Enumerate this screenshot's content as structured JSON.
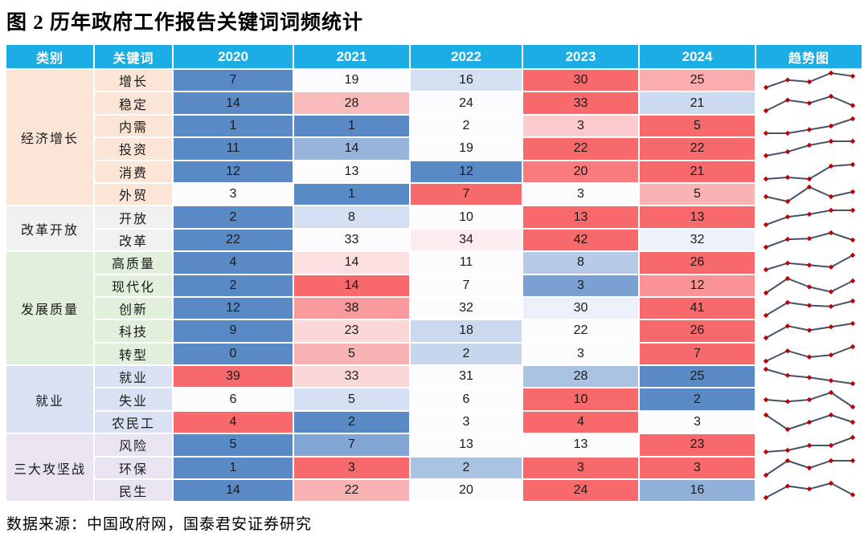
{
  "title": "图 2 历年政府工作报告关键词词频统计",
  "source": "数据来源：中国政府网，国泰君安证券研究",
  "table": {
    "headers": [
      "类别",
      "关键词",
      "2020",
      "2021",
      "2022",
      "2023",
      "2024",
      "趋势图"
    ],
    "category_colors": {
      "经济增长": "#FBE5D6",
      "改革开放": "#F0F0F0",
      "发展质量": "#E2EFDA",
      "就业": "#D9E1F2",
      "三大攻坚战": "#EAE4F2"
    }
  },
  "colors": {
    "header_bg": "#1CADE4",
    "header_text": "#FFFFFF",
    "heat_min": "#5A8AC6",
    "heat_mid": "#FCFCFF",
    "heat_max": "#F8696B",
    "spark_line": "#44546A",
    "spark_marker": "#C00000"
  },
  "chart_data": {
    "type": "table",
    "title": "图 2 历年政府工作报告关键词词频统计",
    "columns": [
      "类别",
      "关键词",
      "2020",
      "2021",
      "2022",
      "2023",
      "2024",
      "趋势图"
    ],
    "years": [
      "2020",
      "2021",
      "2022",
      "2023",
      "2024"
    ],
    "groups": [
      {
        "category": "经济增长",
        "rows": [
          {
            "keyword": "增长",
            "values": [
              7,
              19,
              16,
              30,
              25
            ]
          },
          {
            "keyword": "稳定",
            "values": [
              14,
              28,
              24,
              33,
              21
            ]
          },
          {
            "keyword": "内需",
            "values": [
              1,
              1,
              2,
              3,
              5
            ]
          },
          {
            "keyword": "投资",
            "values": [
              11,
              14,
              19,
              22,
              22
            ]
          },
          {
            "keyword": "消费",
            "values": [
              12,
              13,
              12,
              20,
              21
            ]
          },
          {
            "keyword": "外贸",
            "values": [
              3,
              1,
              7,
              3,
              5
            ]
          }
        ]
      },
      {
        "category": "改革开放",
        "rows": [
          {
            "keyword": "开放",
            "values": [
              2,
              8,
              10,
              13,
              13
            ]
          },
          {
            "keyword": "改革",
            "values": [
              22,
              33,
              34,
              42,
              32
            ]
          }
        ]
      },
      {
        "category": "发展质量",
        "rows": [
          {
            "keyword": "高质量",
            "values": [
              4,
              14,
              11,
              8,
              26
            ]
          },
          {
            "keyword": "现代化",
            "values": [
              2,
              14,
              7,
              3,
              12
            ]
          },
          {
            "keyword": "创新",
            "values": [
              12,
              38,
              32,
              30,
              41
            ]
          },
          {
            "keyword": "科技",
            "values": [
              9,
              23,
              18,
              22,
              26
            ]
          },
          {
            "keyword": "转型",
            "values": [
              0,
              5,
              2,
              3,
              7
            ]
          }
        ]
      },
      {
        "category": "就业",
        "rows": [
          {
            "keyword": "就业",
            "values": [
              39,
              33,
              31,
              28,
              25
            ]
          },
          {
            "keyword": "失业",
            "values": [
              6,
              5,
              6,
              10,
              2
            ]
          },
          {
            "keyword": "农民工",
            "values": [
              4,
              2,
              3,
              4,
              3
            ]
          }
        ]
      },
      {
        "category": "三大攻坚战",
        "rows": [
          {
            "keyword": "风险",
            "values": [
              5,
              7,
              13,
              13,
              23
            ]
          },
          {
            "keyword": "环保",
            "values": [
              1,
              3,
              2,
              3,
              3
            ]
          },
          {
            "keyword": "民生",
            "values": [
              14,
              22,
              20,
              24,
              16
            ]
          }
        ]
      }
    ],
    "heatmap": {
      "scale": "per-row",
      "min_color": "#5A8AC6",
      "mid_color": "#FCFCFF",
      "max_color": "#F8696B"
    },
    "sparkline": {
      "type": "line",
      "line_color": "#44546A",
      "marker_color": "#C00000"
    },
    "legend_position": "none",
    "grid": false,
    "source": "数据来源：中国政府网，国泰君安证券研究"
  }
}
